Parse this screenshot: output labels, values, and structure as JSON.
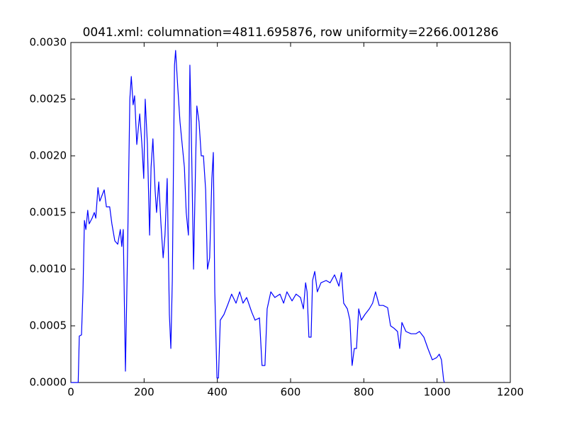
{
  "chart_data": {
    "type": "line",
    "title": "0041.xml: columnation=4811.695876, row uniformity=2266.001286",
    "x": [
      0,
      20,
      23,
      29,
      33,
      37,
      41,
      46,
      50,
      58,
      64,
      68,
      74,
      79,
      85,
      91,
      97,
      106,
      112,
      120,
      128,
      135,
      139,
      143,
      149,
      155,
      161,
      165,
      170,
      174,
      180,
      188,
      194,
      199,
      203,
      209,
      215,
      219,
      224,
      230,
      234,
      240,
      246,
      252,
      257,
      263,
      269,
      273,
      277,
      283,
      286,
      292,
      298,
      304,
      310,
      315,
      321,
      325,
      329,
      335,
      341,
      344,
      350,
      356,
      362,
      368,
      373,
      379,
      385,
      389,
      393,
      399,
      403,
      408,
      418,
      430,
      439,
      451,
      461,
      470,
      480,
      494,
      503,
      515,
      522,
      530,
      536,
      546,
      557,
      571,
      581,
      590,
      604,
      615,
      627,
      635,
      641,
      645,
      650,
      656,
      660,
      666,
      673,
      683,
      697,
      708,
      720,
      732,
      739,
      745,
      755,
      762,
      768,
      774,
      780,
      786,
      793,
      803,
      815,
      824,
      832,
      842,
      853,
      865,
      873,
      882,
      892,
      898,
      904,
      915,
      929,
      942,
      952,
      964,
      975,
      987,
      999,
      1006,
      1012,
      1018,
      1020
    ],
    "series": [
      {
        "name": "line",
        "color": "#0000ff",
        "values": [
          0,
          0,
          0.00041,
          0.00042,
          0.0008,
          0.00143,
          0.00135,
          0.00152,
          0.0014,
          0.00145,
          0.0015,
          0.00145,
          0.00172,
          0.0016,
          0.00165,
          0.0017,
          0.00155,
          0.00155,
          0.0014,
          0.00125,
          0.00122,
          0.00135,
          0.0012,
          0.00135,
          0.0001,
          0.0012,
          0.0025,
          0.0027,
          0.00245,
          0.00253,
          0.0021,
          0.00237,
          0.0021,
          0.0018,
          0.0025,
          0.0021,
          0.0013,
          0.0019,
          0.00215,
          0.0017,
          0.0015,
          0.00177,
          0.0014,
          0.0011,
          0.0013,
          0.0018,
          0.0006,
          0.0003,
          0.0009,
          0.0028,
          0.00293,
          0.0026,
          0.0023,
          0.0021,
          0.0019,
          0.0015,
          0.0013,
          0.0028,
          0.0022,
          0.001,
          0.002,
          0.00244,
          0.0023,
          0.002,
          0.002,
          0.0017,
          0.001,
          0.0011,
          0.0018,
          0.00203,
          0.0008,
          4e-05,
          4e-05,
          0.00055,
          0.0006,
          0.0007,
          0.00078,
          0.0007,
          0.0008,
          0.0007,
          0.00075,
          0.00062,
          0.00055,
          0.00057,
          0.00015,
          0.00015,
          0.00065,
          0.0008,
          0.00075,
          0.00078,
          0.0007,
          0.0008,
          0.00072,
          0.00078,
          0.00075,
          0.00065,
          0.00088,
          0.0008,
          0.0004,
          0.0004,
          0.0009,
          0.00098,
          0.0008,
          0.00088,
          0.0009,
          0.00088,
          0.00095,
          0.00085,
          0.00097,
          0.0007,
          0.00065,
          0.00055,
          0.00015,
          0.0003,
          0.0003,
          0.00065,
          0.00055,
          0.0006,
          0.00065,
          0.0007,
          0.0008,
          0.00068,
          0.00068,
          0.00066,
          0.0005,
          0.00048,
          0.00045,
          0.0003,
          0.00053,
          0.00045,
          0.00043,
          0.00043,
          0.00045,
          0.0004,
          0.0003,
          0.0002,
          0.00022,
          0.00025,
          0.0002,
          2e-05,
          0
        ]
      }
    ],
    "xlim": [
      0,
      1200
    ],
    "xticks": [
      0,
      200,
      400,
      600,
      800,
      1000,
      1200
    ],
    "ylim": [
      0,
      0.003
    ],
    "yticks": [
      {
        "value": 0,
        "label": "0.0000"
      },
      {
        "value": 0.0005,
        "label": "0.0005"
      },
      {
        "value": 0.001,
        "label": "0.0010"
      },
      {
        "value": 0.0015,
        "label": "0.0015"
      },
      {
        "value": 0.002,
        "label": "0.0020"
      },
      {
        "value": 0.0025,
        "label": "0.0025"
      },
      {
        "value": 0.003,
        "label": "0.0030"
      }
    ],
    "grid": false
  }
}
